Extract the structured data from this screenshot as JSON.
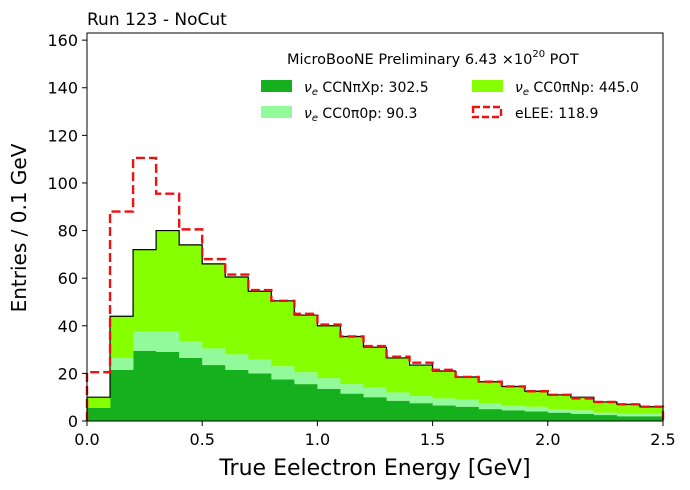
{
  "chart_data": {
    "type": "bar",
    "stacked": true,
    "histogram": true,
    "title": "Run 123 - NoCut",
    "annotation": "MicroBooNE Preliminary 6.43 ×10",
    "annotation_exponent": "20",
    "annotation_suffix": " POT",
    "xlabel": "True Eelectron Energy [GeV]",
    "ylabel": "Entries / 0.1 GeV",
    "xlim": [
      0,
      2.5
    ],
    "ylim": [
      0,
      163
    ],
    "xticks": [
      "0.0",
      "0.5",
      "1.0",
      "1.5",
      "2.0",
      "2.5"
    ],
    "xtick_values": [
      0,
      0.5,
      1.0,
      1.5,
      2.0,
      2.5
    ],
    "yticks": [
      "0",
      "20",
      "40",
      "60",
      "80",
      "100",
      "120",
      "140",
      "160"
    ],
    "ytick_values": [
      0,
      20,
      40,
      60,
      80,
      100,
      120,
      140,
      160
    ],
    "grid": false,
    "legend_position": "top-right",
    "bin_edges": [
      0.0,
      0.1,
      0.2,
      0.3,
      0.4,
      0.5,
      0.6,
      0.7,
      0.8,
      0.9,
      1.0,
      1.1,
      1.2,
      1.3,
      1.4,
      1.5,
      1.6,
      1.7,
      1.8,
      1.9,
      2.0,
      2.1,
      2.2,
      2.3,
      2.4,
      2.5
    ],
    "series": [
      {
        "name": "CCNπXp: 302.5",
        "color": "#16b01e",
        "values": [
          5.5,
          21.5,
          29.5,
          29.0,
          26.5,
          23.5,
          21.5,
          20.0,
          17.5,
          15.5,
          13.5,
          11.5,
          10.0,
          8.5,
          7.5,
          6.5,
          6.0,
          5.0,
          4.5,
          4.0,
          3.5,
          3.0,
          2.5,
          2.0,
          2.0
        ]
      },
      {
        "name": "CC0π0p: 90.3",
        "color": "#92fa9a",
        "values": [
          0.0,
          5.0,
          8.0,
          8.5,
          7.0,
          7.0,
          6.5,
          6.0,
          5.5,
          5.0,
          4.5,
          4.0,
          4.0,
          3.5,
          3.0,
          3.0,
          3.0,
          2.5,
          2.0,
          2.0,
          1.5,
          1.5,
          1.0,
          1.0,
          1.0
        ]
      },
      {
        "name": "CC0πNp: 445.0",
        "color": "#86ff00",
        "values": [
          4.5,
          17.5,
          34.5,
          42.5,
          40.5,
          35.5,
          32.5,
          28.5,
          27.5,
          24.0,
          22.0,
          20.0,
          17.0,
          14.5,
          13.0,
          11.5,
          9.5,
          9.0,
          8.0,
          6.5,
          6.0,
          5.5,
          4.5,
          4.0,
          3.0
        ]
      }
    ],
    "overlay": {
      "name": "eLEE: 118.9",
      "color": "#ee1111",
      "style": "dashed",
      "values": [
        20.5,
        88.0,
        110.5,
        95.5,
        80.5,
        68.0,
        61.5,
        55.0,
        50.5,
        45.0,
        40.5,
        35.5,
        31.5,
        27.0,
        24.5,
        21.5,
        18.5,
        16.5,
        14.5,
        12.5,
        11.0,
        9.5,
        8.0,
        7.0,
        6.0
      ]
    },
    "legend": {
      "prefix": "ν",
      "prefix_sub": "e",
      "items": [
        {
          "label": "CCNπXp: 302.5",
          "color": "#16b01e",
          "style": "fill",
          "nu": true
        },
        {
          "label": "CC0πNp: 445.0",
          "color": "#86ff00",
          "style": "fill",
          "nu": true
        },
        {
          "label": "CC0π0p: 90.3",
          "color": "#92fa9a",
          "style": "fill",
          "nu": true
        },
        {
          "label": "eLEE: 118.9",
          "color": "#ee1111",
          "style": "dashed",
          "nu": false
        }
      ]
    }
  }
}
